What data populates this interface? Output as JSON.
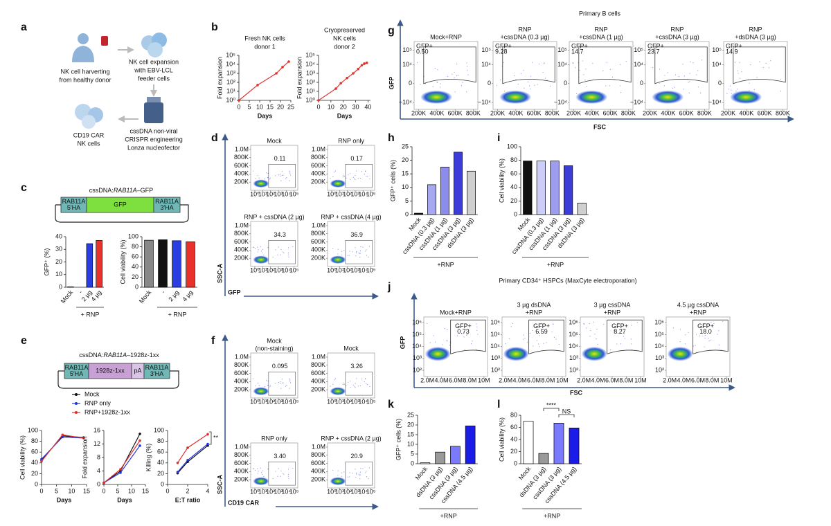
{
  "panel_letters": [
    "a",
    "b",
    "c",
    "d",
    "e",
    "f",
    "g",
    "h",
    "i",
    "j",
    "k",
    "l"
  ],
  "workflow": [
    [
      "NK cell harverting",
      "from healthy donor"
    ],
    [
      "NK cell expansion",
      "with EBV-LCL",
      "feeder cells"
    ],
    [
      "cssDNA non-viral",
      "CRISPR engineering",
      "Lonza nucleofector"
    ],
    [
      "CD19 CAR",
      "NK cells"
    ]
  ],
  "constructs": [
    {
      "title": [
        "cssDNA:",
        "RAB11A",
        "–GFP"
      ],
      "boxes": [
        [
          "RAB11A",
          "5′HA"
        ],
        [
          "GFP"
        ],
        [
          "RAB11A",
          "3′HA"
        ]
      ],
      "colors": [
        "#6fb8b6",
        "#7ee03f",
        "#6fb8b6"
      ]
    },
    {
      "title": [
        "cssDNA:",
        "RAB11A",
        "–1928z-1xx"
      ],
      "boxes": [
        [
          "RAB11A",
          "5′HA"
        ],
        [
          "1928z-1xx"
        ],
        [
          "pA"
        ],
        [
          "RAB11A",
          "3′HA"
        ]
      ],
      "colors": [
        "#6fb8b6",
        "#c8a0d6",
        "#d9c3e6",
        "#6fb8b6"
      ]
    }
  ],
  "chart_data": [
    {
      "type": "line",
      "title": [
        "Fresh NK cells",
        "donor 1"
      ],
      "xlabel": "Days",
      "ylabel": "Fold expansion",
      "ylog": true,
      "xlim": [
        0,
        25
      ],
      "xticks": [
        0,
        5,
        10,
        15,
        20,
        25
      ],
      "ylim": [
        1,
        100000
      ],
      "yticks": [
        {
          "value": 1,
          "label": "10⁰"
        },
        {
          "value": 10,
          "label": "10¹"
        },
        {
          "value": 100,
          "label": "10²"
        },
        {
          "value": 1000,
          "label": "10³"
        },
        {
          "value": 10000,
          "label": "10⁴"
        },
        {
          "value": 100000,
          "label": "10⁵"
        }
      ],
      "series": [
        {
          "color": "#e0312b",
          "x": [
            0,
            9,
            18,
            21,
            24
          ],
          "values": [
            1,
            50,
            1000,
            5000,
            20000
          ]
        }
      ]
    },
    {
      "type": "line",
      "title": [
        "Cryopreserved",
        "NK cells",
        "donor 2"
      ],
      "xlabel": "Days",
      "ylabel": "Fold expansion",
      "ylog": true,
      "xlim": [
        0,
        42
      ],
      "xticks": [
        0,
        10,
        20,
        30,
        40
      ],
      "ylim": [
        1,
        100000
      ],
      "yticks": [
        {
          "value": 1,
          "label": "10⁰"
        },
        {
          "value": 10,
          "label": "10¹"
        },
        {
          "value": 100,
          "label": "10²"
        },
        {
          "value": 1000,
          "label": "10³"
        },
        {
          "value": 10000,
          "label": "10⁴"
        },
        {
          "value": 100000,
          "label": "10⁵"
        }
      ],
      "series": [
        {
          "color": "#e0312b",
          "x": [
            0,
            14,
            18,
            23,
            28,
            32,
            35,
            37,
            39
          ],
          "values": [
            1,
            20,
            80,
            300,
            1000,
            3000,
            8000,
            12000,
            15000
          ]
        }
      ]
    },
    {
      "type": "bar",
      "ylabel": "GFP⁺ (%)",
      "categories": [
        "Mock",
        "-",
        "2 µg",
        "4 µg"
      ],
      "values": [
        0.3,
        0,
        34.5,
        37
      ],
      "colors": [
        "#888888",
        "#111111",
        "#2a3de0",
        "#e8312a"
      ],
      "ylim": [
        0,
        40
      ],
      "yticks": [
        0,
        10,
        20,
        30,
        40
      ],
      "group_label": "+ RNP"
    },
    {
      "type": "bar",
      "ylabel": "Cell viability (%)",
      "categories": [
        "Mock",
        "-",
        "2 µg",
        "4 µg"
      ],
      "values": [
        93,
        94,
        92,
        90
      ],
      "colors": [
        "#888888",
        "#111111",
        "#2a3de0",
        "#e8312a"
      ],
      "ylim": [
        0,
        100
      ],
      "yticks": [
        0,
        20,
        40,
        60,
        80,
        100
      ],
      "group_label": "+ RNP"
    },
    {
      "type": "flow",
      "xlabel": "GFP",
      "ylabel": "SSC-A",
      "xscale": "log",
      "yscale": "linear",
      "xlim": [
        0.3,
        300000
      ],
      "xticks": [
        {
          "value": 1,
          "label": "10⁰"
        },
        {
          "value": 10,
          "label": "10¹"
        },
        {
          "value": 100,
          "label": "10²"
        },
        {
          "value": 1000,
          "label": "10³"
        },
        {
          "value": 10000,
          "label": "10⁴"
        },
        {
          "value": 100000,
          "label": "10⁵"
        }
      ],
      "ylim": [
        0,
        1100000
      ],
      "yticks": [
        {
          "value": 200000,
          "label": "200K"
        },
        {
          "value": 400000,
          "label": "400K"
        },
        {
          "value": 600000,
          "label": "600K"
        },
        {
          "value": 800000,
          "label": "800K"
        },
        {
          "value": 1000000,
          "label": "1.0M"
        }
      ],
      "plots": [
        [
          "Mock"
        ],
        [
          "RNP only"
        ],
        [
          "RNP + cssDNA (2 µg)"
        ],
        [
          "RNP + cssDNA (4 µg)"
        ]
      ],
      "values": [
        0.11,
        0.17,
        34.3,
        36.9
      ]
    },
    {
      "type": "line",
      "xlabel": "Days",
      "ylabel": "Cell viability (%)",
      "xlim": [
        0,
        15
      ],
      "xticks": [
        0,
        5,
        10,
        15
      ],
      "ylim": [
        0,
        100
      ],
      "yticks": [
        0,
        20,
        40,
        60,
        80,
        100
      ],
      "series": [
        {
          "name": "Mock",
          "color": "#111111",
          "x": [
            0,
            7,
            14
          ],
          "values": [
            45,
            90,
            87
          ]
        },
        {
          "name": "RNP only",
          "color": "#2233dd",
          "x": [
            0,
            7,
            14
          ],
          "values": [
            47,
            88,
            86
          ]
        },
        {
          "name": "RNP+1928z-1xx",
          "color": "#e0302a",
          "x": [
            0,
            7,
            14
          ],
          "values": [
            43,
            92,
            86
          ]
        }
      ]
    },
    {
      "type": "line",
      "xlabel": "Days",
      "ylabel": "Fold expansion",
      "xlim": [
        0,
        15
      ],
      "xticks": [
        0,
        5,
        10,
        15
      ],
      "ylim": [
        0,
        16
      ],
      "yticks": [
        0,
        4,
        8,
        12,
        16
      ],
      "series": [
        {
          "color": "#111111",
          "x": [
            0,
            6,
            13
          ],
          "values": [
            0.5,
            4,
            15
          ]
        },
        {
          "color": "#2233dd",
          "x": [
            0,
            6,
            13
          ],
          "values": [
            0.5,
            3.5,
            11.5
          ]
        },
        {
          "color": "#e0302a",
          "x": [
            0,
            6,
            13
          ],
          "values": [
            0.5,
            4.5,
            13
          ]
        }
      ]
    },
    {
      "type": "line",
      "xlabel": "E:T ratio",
      "ylabel": "Killing (%)",
      "xlim": [
        0,
        4
      ],
      "xticks": [
        0,
        2,
        4
      ],
      "ylim": [
        0,
        100
      ],
      "yticks": [
        0,
        20,
        40,
        60,
        80,
        100
      ],
      "series": [
        {
          "color": "#111111",
          "x": [
            1,
            2,
            4
          ],
          "values": [
            21,
            42,
            72
          ]
        },
        {
          "color": "#2233dd",
          "x": [
            1,
            2,
            4
          ],
          "values": [
            23,
            45,
            75
          ]
        },
        {
          "color": "#e0302a",
          "x": [
            1,
            2,
            4
          ],
          "values": [
            40,
            68,
            93
          ]
        }
      ],
      "annotations": [
        "**"
      ]
    },
    {
      "type": "flow",
      "xlabel": "CD19 CAR",
      "ylabel": "SSC-A",
      "xscale": "log",
      "yscale": "linear",
      "xlim": [
        0.3,
        300000
      ],
      "xticks": [
        {
          "value": 1,
          "label": "10⁰"
        },
        {
          "value": 10,
          "label": "10¹"
        },
        {
          "value": 100,
          "label": "10²"
        },
        {
          "value": 1000,
          "label": "10³"
        },
        {
          "value": 10000,
          "label": "10⁴"
        },
        {
          "value": 100000,
          "label": "10⁵"
        }
      ],
      "ylim": [
        0,
        1100000
      ],
      "yticks": [
        {
          "value": 200000,
          "label": "200K"
        },
        {
          "value": 400000,
          "label": "400K"
        },
        {
          "value": 600000,
          "label": "600K"
        },
        {
          "value": 800000,
          "label": "800K"
        },
        {
          "value": 1000000,
          "label": "1.0M"
        }
      ],
      "plots": [
        [
          "Mock",
          "(non-staining)"
        ],
        [
          "Mock"
        ],
        [
          "RNP only"
        ],
        [
          "RNP + cssDNA (2 µg)"
        ]
      ],
      "values": [
        0.095,
        3.26,
        3.4,
        20.9
      ],
      "value_labels": [
        "0.095",
        "3.26",
        "3.40",
        "20.9"
      ]
    },
    {
      "type": "flow",
      "title": "Primary B cells",
      "xlabel": "FSC",
      "ylabel": "GFP",
      "xscale": "linear",
      "yscale": "biex",
      "xlim": [
        150000,
        850000
      ],
      "xticks": [
        {
          "value": 200000,
          "label": "200K"
        },
        {
          "value": 400000,
          "label": "400K"
        },
        {
          "value": 600000,
          "label": "600K"
        },
        {
          "value": 800000,
          "label": "800K"
        }
      ],
      "ylim": [
        -30000,
        400000
      ],
      "yticks": [
        {
          "value": -10000,
          "label": "−10⁴"
        },
        0,
        {
          "value": 10000,
          "label": "10⁴"
        },
        {
          "value": 100000,
          "label": "10⁵"
        }
      ],
      "gate_label": "GFP+",
      "plots": [
        [
          "Mock+RNP"
        ],
        [
          "RNP",
          "+cssDNA (0.3 µg)"
        ],
        [
          "RNP",
          "+cssDNA (1 µg)"
        ],
        [
          "RNP",
          "+cssDNA (3 µg)"
        ],
        [
          "RNP",
          "+dsDNA (3 µg)"
        ]
      ],
      "values": [
        0.5,
        9.28,
        14.7,
        23.7,
        14.9
      ],
      "value_labels": [
        "0.50",
        "9.28",
        "14.7",
        "23.7",
        "14.9"
      ]
    },
    {
      "type": "bar",
      "ylabel": "GFP⁺ cells (%)",
      "categories": [
        "Mock",
        "cssDNA (0.3 µg)",
        "cssDNA (1 µg)",
        "cssDNA (3 µg)",
        "dsDNA (3 µg)"
      ],
      "values": [
        0.5,
        11,
        17.5,
        23,
        16
      ],
      "colors": [
        "#111111",
        "#a8a8f0",
        "#8c8cec",
        "#3c3cd8",
        "#cfcfcf"
      ],
      "ylim": [
        0,
        25
      ],
      "yticks": [
        0,
        5,
        10,
        15,
        20,
        25
      ],
      "group_label": "+RNP"
    },
    {
      "type": "bar",
      "ylabel": "Cell viability (%)",
      "categories": [
        "Mock",
        "cssDNA (0.3 µg)",
        "cssDNA (1 µg)",
        "cssDNA (3 µg)",
        "dsDNA (3 µg)"
      ],
      "values": [
        79,
        79,
        79,
        72,
        17
      ],
      "colors": [
        "#111111",
        "#cdcdf7",
        "#9d9df0",
        "#3c3cd8",
        "#cfcfcf"
      ],
      "ylim": [
        0,
        100
      ],
      "yticks": [
        0,
        20,
        40,
        60,
        80,
        100
      ],
      "group_label": "+RNP"
    },
    {
      "type": "flow",
      "title": "Primary CD34⁺ HSPCs (MaxCyte electroporation)",
      "xlabel": "FSC",
      "ylabel": "GFP",
      "xscale": "linear",
      "yscale": "log",
      "xlim": [
        1500000,
        10500000
      ],
      "xticks": [
        {
          "value": 2000000,
          "label": "2.0M"
        },
        {
          "value": 4000000,
          "label": "4.0M"
        },
        {
          "value": 6000000,
          "label": "6.0M"
        },
        {
          "value": 8000000,
          "label": "8.0M"
        },
        {
          "value": 10000000,
          "label": "10M"
        }
      ],
      "ylim": [
        30,
        3000000
      ],
      "yticks": [
        {
          "value": 100,
          "label": "10²"
        },
        {
          "value": 1000,
          "label": "10³"
        },
        {
          "value": 10000,
          "label": "10⁴"
        },
        {
          "value": 100000,
          "label": "10⁵"
        },
        {
          "value": 1000000,
          "label": "10⁶"
        }
      ],
      "gate_label": "GFP+",
      "plots": [
        [
          "Mock+RNP"
        ],
        [
          "3 µg dsDNA",
          "+RNP"
        ],
        [
          "3 µg cssDNA",
          "+RNP"
        ],
        [
          "4.5 µg cssDNA",
          "+RNP"
        ]
      ],
      "values": [
        0.73,
        6.59,
        8.27,
        18
      ],
      "value_labels": [
        "0.73",
        "6.59",
        "8.27",
        "18.0"
      ]
    },
    {
      "type": "bar",
      "ylabel": "GFP⁺ cells (%)",
      "categories": [
        "Mock",
        "dsDNA (3 µg)",
        "cssDNA (3 µg)",
        "cssDNA (4.5 µg)"
      ],
      "values": [
        0.5,
        6,
        9,
        19.5
      ],
      "colors": [
        "#ffffff",
        "#9a9a9a",
        "#7a7aff",
        "#1c1ce8"
      ],
      "ylim": [
        0,
        25
      ],
      "yticks": [
        0,
        5,
        10,
        15,
        20,
        25
      ],
      "group_label": "+RNP"
    },
    {
      "type": "bar",
      "ylabel": "Cell viability (%)",
      "categories": [
        "Mock",
        "dsDNA (3 µg)",
        "cssDNA (3 µg)",
        "cssDNA (4.5 µg)"
      ],
      "values": [
        70,
        17,
        67,
        59
      ],
      "colors": [
        "#ffffff",
        "#9a9a9a",
        "#7a7aff",
        "#1c1ce8"
      ],
      "ylim": [
        0,
        80
      ],
      "yticks": [
        0,
        20,
        40,
        60,
        80
      ],
      "group_label": "+RNP",
      "annotations": [
        "****",
        "NS"
      ]
    }
  ]
}
